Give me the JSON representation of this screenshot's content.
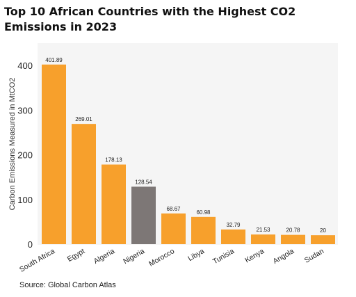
{
  "chart_data": {
    "type": "bar",
    "title": "Top 10 African Countries with the Highest CO2 Emissions in 2023",
    "ylabel": "Carbon Emissions Measured in MtCO2",
    "xlabel": "",
    "categories": [
      "South Africa",
      "Egypt",
      "Algeria",
      "Nigeria",
      "Morocco",
      "Libya",
      "Tunisia",
      "Kenya",
      "Angola",
      "Sudan"
    ],
    "values": [
      401.89,
      269.01,
      178.13,
      128.54,
      68.67,
      60.98,
      32.79,
      21.53,
      20.78,
      20
    ],
    "value_labels": [
      "401.89",
      "269.01",
      "178.13",
      "128.54",
      "68.67",
      "60.98",
      "32.79",
      "21.53",
      "20.78",
      "20"
    ],
    "ylim": [
      0,
      430
    ],
    "yticks": [
      0,
      100,
      200,
      300,
      400
    ],
    "grid": false,
    "legend": "none",
    "colors": {
      "bar": "#f7a02c",
      "highlight": "#7d7776",
      "highlight_category": "Nigeria",
      "plot_background": "#f5f5f5"
    }
  },
  "source": "Source: Global Carbon Atlas"
}
